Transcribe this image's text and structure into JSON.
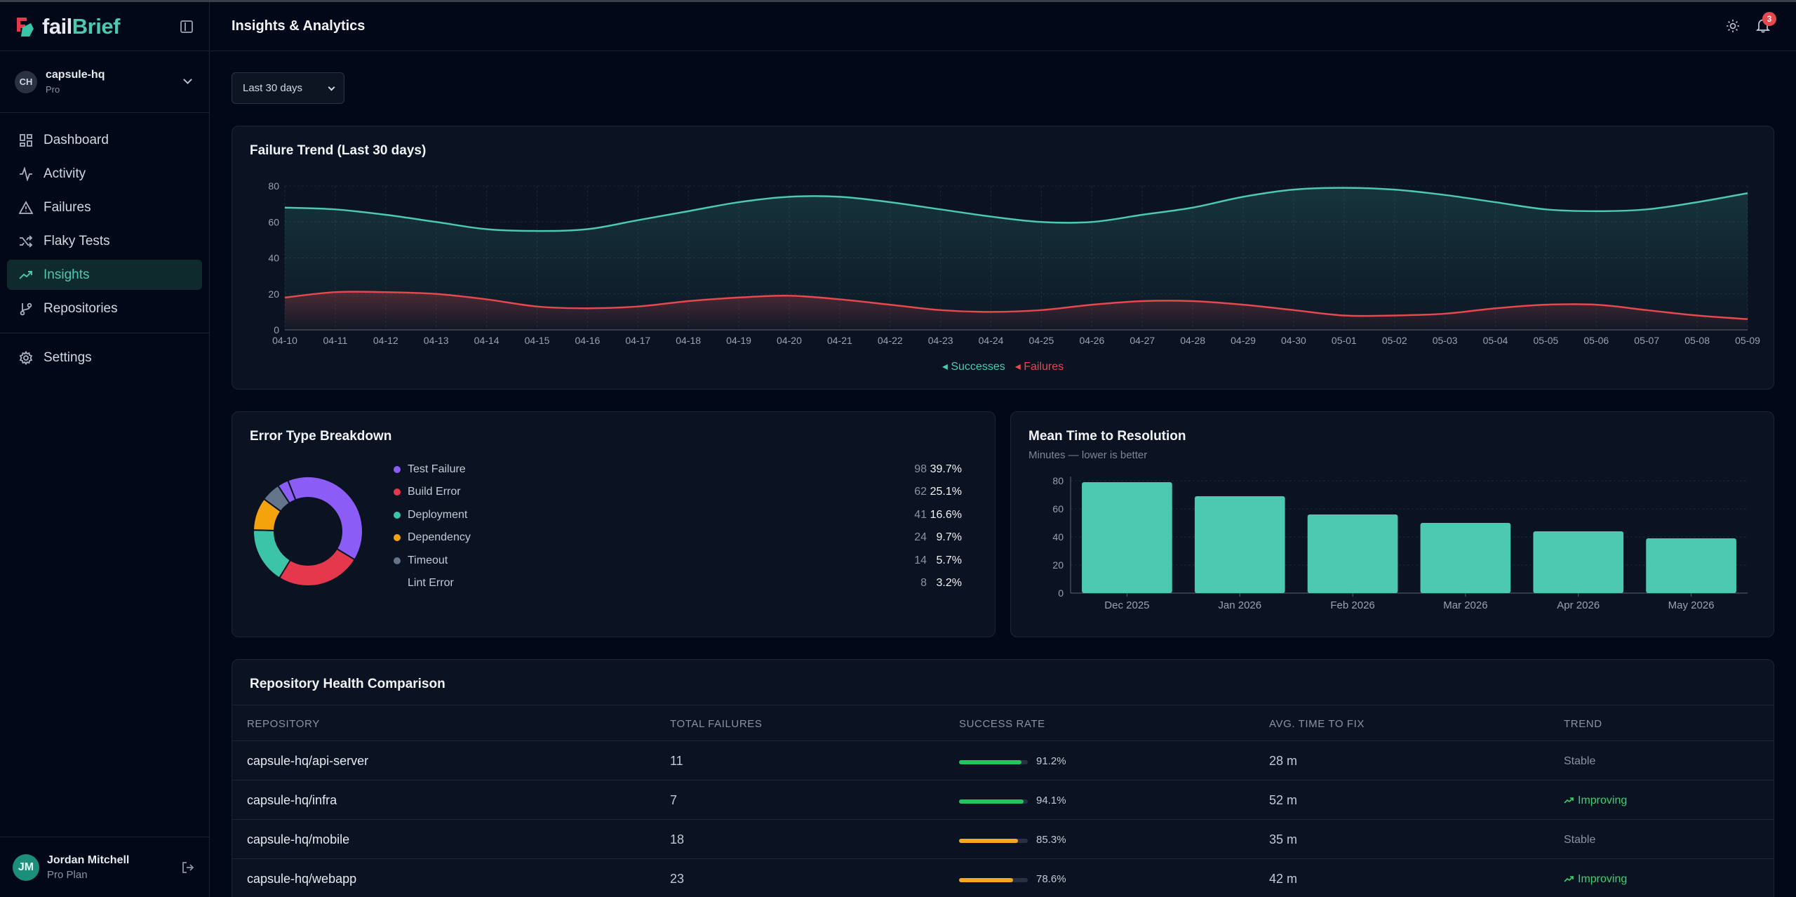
{
  "app": {
    "brand_fail": "fail",
    "brand_brief": "Brief"
  },
  "org": {
    "initials": "CH",
    "name": "capsule-hq",
    "plan": "Pro"
  },
  "nav": {
    "items": [
      {
        "label": "Dashboard",
        "icon": "dashboard-icon"
      },
      {
        "label": "Activity",
        "icon": "activity-icon"
      },
      {
        "label": "Failures",
        "icon": "warning-icon"
      },
      {
        "label": "Flaky Tests",
        "icon": "shuffle-icon"
      },
      {
        "label": "Insights",
        "icon": "trending-up-icon",
        "active": true
      },
      {
        "label": "Repositories",
        "icon": "git-branch-icon"
      }
    ],
    "settings": {
      "label": "Settings",
      "icon": "gear-icon"
    }
  },
  "user": {
    "initials": "JM",
    "name": "Jordan Mitchell",
    "plan": "Pro Plan"
  },
  "header": {
    "title": "Insights & Analytics",
    "notification_count": "3"
  },
  "filters": {
    "range": "Last 30 days"
  },
  "colors": {
    "accent": "#4cc9b0",
    "failure": "#e5484d",
    "success_bar": "#22c55e",
    "warn_bar": "#f5a623"
  },
  "trend_card": {
    "title": "Failure Trend (Last 30 days)",
    "legend_successes": "Successes",
    "legend_failures": "Failures"
  },
  "error_card": {
    "title": "Error Type Breakdown"
  },
  "mttr_card": {
    "title": "Mean Time to Resolution",
    "subtitle": "Minutes — lower is better"
  },
  "repo_card": {
    "title": "Repository Health Comparison",
    "columns": [
      "REPOSITORY",
      "TOTAL FAILURES",
      "SUCCESS RATE",
      "AVG. TIME TO FIX",
      "TREND"
    ],
    "rows": [
      {
        "repo": "capsule-hq/api-server",
        "failures": "11",
        "rate": 91.2,
        "rate_label": "91.2%",
        "fix": "28 m",
        "trend": "Stable"
      },
      {
        "repo": "capsule-hq/infra",
        "failures": "7",
        "rate": 94.1,
        "rate_label": "94.1%",
        "fix": "52 m",
        "trend": "Improving"
      },
      {
        "repo": "capsule-hq/mobile",
        "failures": "18",
        "rate": 85.3,
        "rate_label": "85.3%",
        "fix": "35 m",
        "trend": "Stable"
      },
      {
        "repo": "capsule-hq/webapp",
        "failures": "23",
        "rate": 78.6,
        "rate_label": "78.6%",
        "fix": "42 m",
        "trend": "Improving"
      }
    ]
  },
  "chart_data": [
    {
      "type": "area",
      "title": "Failure Trend (Last 30 days)",
      "x": [
        "04-10",
        "04-11",
        "04-12",
        "04-13",
        "04-14",
        "04-15",
        "04-16",
        "04-17",
        "04-18",
        "04-19",
        "04-20",
        "04-21",
        "04-22",
        "04-23",
        "04-24",
        "04-25",
        "04-26",
        "04-27",
        "04-28",
        "04-29",
        "04-30",
        "05-01",
        "05-02",
        "05-03",
        "05-04",
        "05-05",
        "05-06",
        "05-07",
        "05-08",
        "05-09"
      ],
      "series": [
        {
          "name": "Successes",
          "color": "#4cc9b0",
          "values": [
            68,
            67,
            64,
            60,
            56,
            55,
            56,
            61,
            66,
            71,
            74,
            74,
            71,
            67,
            63,
            60,
            60,
            64,
            68,
            74,
            78,
            79,
            78,
            75,
            71,
            67,
            66,
            67,
            71,
            76
          ]
        },
        {
          "name": "Failures",
          "color": "#e5484d",
          "values": [
            18,
            21,
            21,
            20,
            17,
            13,
            12,
            13,
            16,
            18,
            19,
            17,
            14,
            11,
            10,
            11,
            14,
            16,
            16,
            14,
            11,
            8,
            8,
            9,
            12,
            14,
            14,
            11,
            8,
            6
          ]
        }
      ],
      "yticks": [
        0,
        20,
        40,
        60,
        80
      ],
      "ylim": [
        0,
        80
      ]
    },
    {
      "type": "pie",
      "title": "Error Type Breakdown",
      "slices": [
        {
          "label": "Test Failure",
          "count": 98,
          "pct": "39.7%",
          "color": "#8b5cf6"
        },
        {
          "label": "Build Error",
          "count": 62,
          "pct": "25.1%",
          "color": "#e5384d"
        },
        {
          "label": "Deployment",
          "count": 41,
          "pct": "16.6%",
          "color": "#3cc4a8"
        },
        {
          "label": "Dependency",
          "count": 24,
          "pct": "9.7%",
          "color": "#f5a30c"
        },
        {
          "label": "Timeout",
          "count": 14,
          "pct": "5.7%",
          "color": "#64748b"
        },
        {
          "label": "Lint Error",
          "count": 8,
          "pct": "3.2%",
          "color": "#8b5cf6"
        }
      ]
    },
    {
      "type": "bar",
      "title": "Mean Time to Resolution",
      "categories": [
        "Dec 2025",
        "Jan 2026",
        "Feb 2026",
        "Mar 2026",
        "Apr 2026",
        "May 2026"
      ],
      "values": [
        79,
        69,
        56,
        50,
        44,
        39
      ],
      "yticks": [
        0,
        20,
        40,
        60,
        80
      ],
      "ylim": [
        0,
        80
      ],
      "color": "#4cc9b0"
    }
  ]
}
